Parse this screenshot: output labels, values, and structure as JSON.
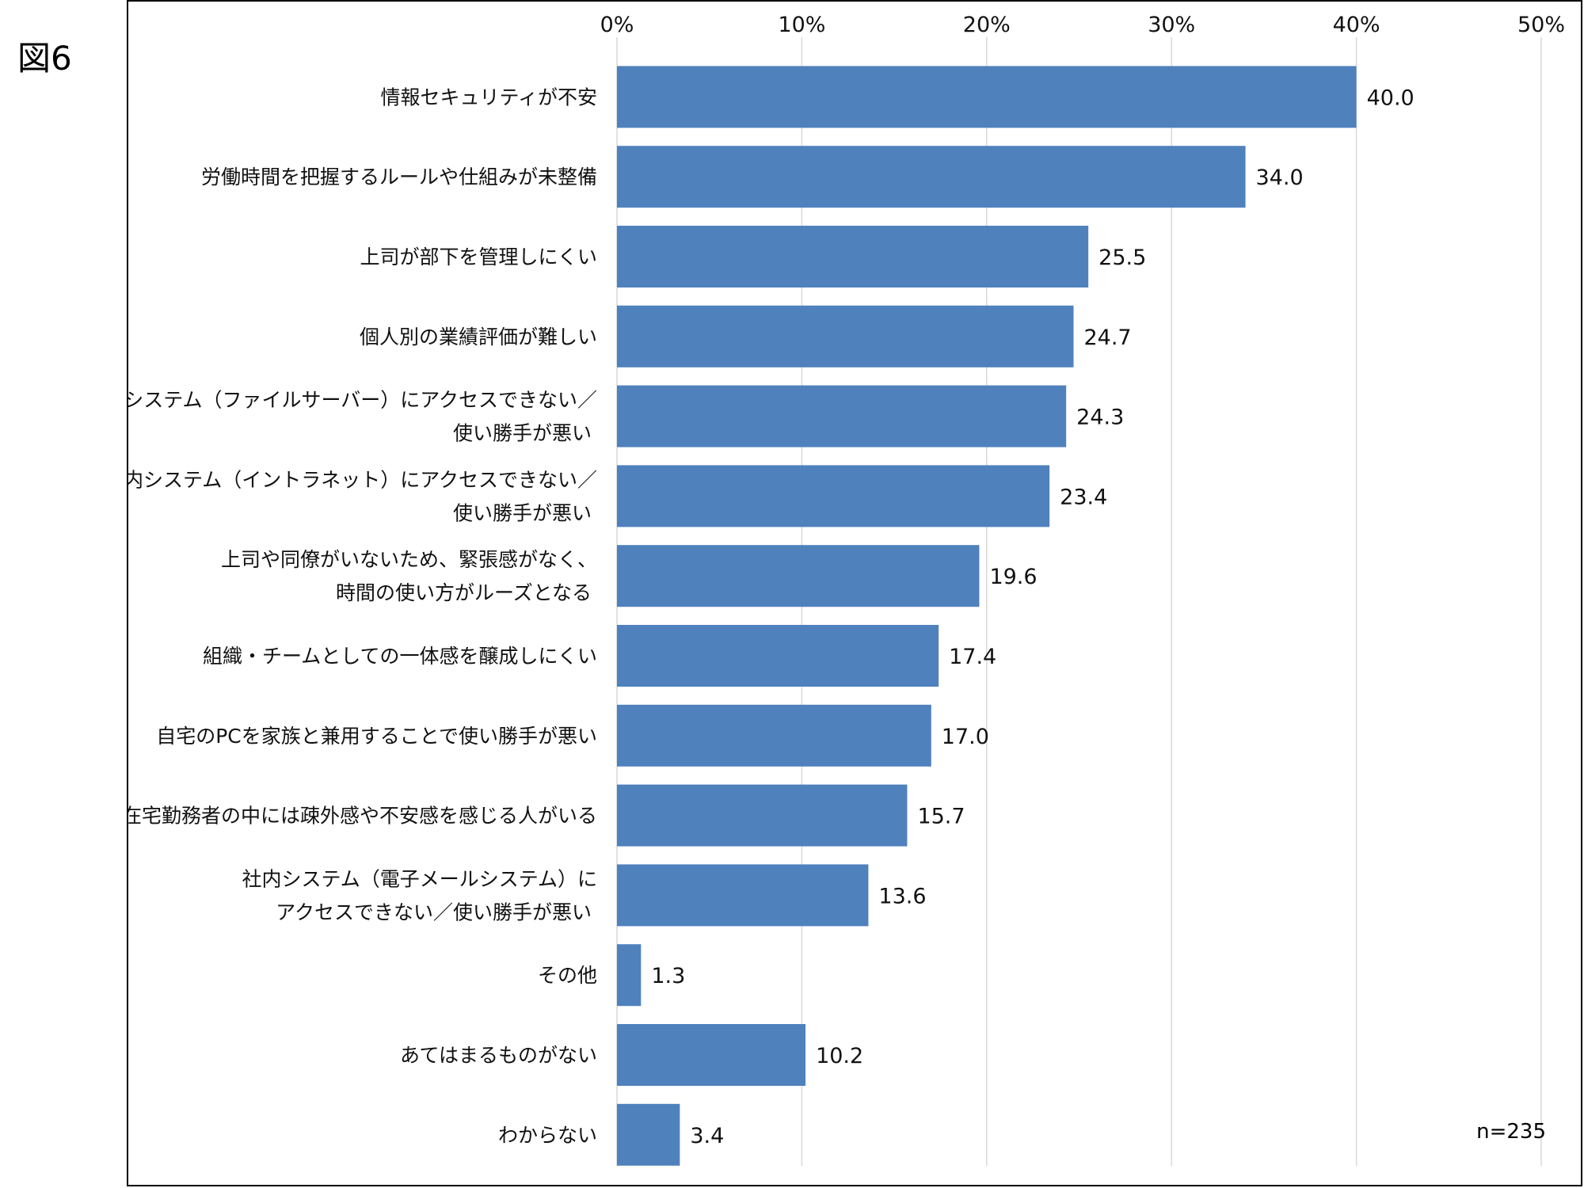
{
  "figure_label": "図6",
  "sample_size": "n=235",
  "colors": {
    "bar": "#4f81bd",
    "grid": "#d9d9d9"
  },
  "chart_data": {
    "type": "bar",
    "orientation": "horizontal",
    "xlim": [
      0,
      50
    ],
    "xticks": [
      "0%",
      "10%",
      "20%",
      "30%",
      "40%",
      "50%"
    ],
    "grid": true,
    "categories": [
      [
        "情報セキュリティが不安"
      ],
      [
        "労働時間を把握するルールや仕組みが未整備"
      ],
      [
        "上司が部下を管理しにくい"
      ],
      [
        "個人別の業績評価が難しい"
      ],
      [
        "社内システム（ファイルサーバー）にアクセスできない／",
        "使い勝手が悪い"
      ],
      [
        "社内システム（イントラネット）にアクセスできない／",
        "使い勝手が悪い"
      ],
      [
        "上司や同僚がいないため、緊張感がなく、",
        "時間の使い方がルーズとなる"
      ],
      [
        "組織・チームとしての一体感を醸成しにくい"
      ],
      [
        "自宅のPCを家族と兼用することで使い勝手が悪い"
      ],
      [
        "在宅勤務者の中には疎外感や不安感を感じる人がいる"
      ],
      [
        "社内システム（電子メールシステム）に",
        "アクセスできない／使い勝手が悪い"
      ],
      [
        "その他"
      ],
      [
        "あてはまるものがない"
      ],
      [
        "わからない"
      ]
    ],
    "values": [
      40.0,
      34.0,
      25.5,
      24.7,
      24.3,
      23.4,
      19.6,
      17.4,
      17.0,
      15.7,
      13.6,
      1.3,
      10.2,
      3.4
    ],
    "value_labels": [
      "40.0",
      "34.0",
      "25.5",
      "24.7",
      "24.3",
      "23.4",
      "19.6",
      "17.4",
      "17.0",
      "15.7",
      "13.6",
      "1.3",
      "10.2",
      "3.4"
    ]
  }
}
